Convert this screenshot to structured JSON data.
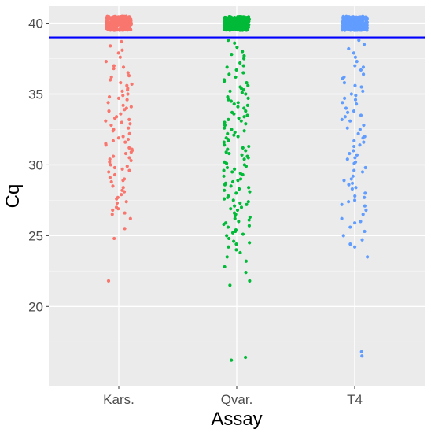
{
  "chart_data": {
    "type": "scatter",
    "style": "jitter strip plot",
    "xlabel": "Assay",
    "ylabel": "Cq",
    "ylim": [
      14.4,
      41.2
    ],
    "yticks": [
      20,
      25,
      30,
      35,
      40
    ],
    "grid": true,
    "legend": "none",
    "categories": [
      "Kars.",
      "Qvar.",
      "T4"
    ],
    "reference_line": {
      "y": 39,
      "color": "#0000FF"
    },
    "series": [
      {
        "category": "Kars.",
        "color": "#F8766D",
        "clustered_at_40_count": 260,
        "values": [
          38.7,
          38.4,
          38.1,
          37.9,
          37.6,
          37.3,
          37.0,
          36.8,
          36.5,
          36.2,
          36.0,
          35.8,
          35.6,
          35.4,
          35.2,
          35.0,
          34.8,
          34.6,
          34.4,
          34.2,
          34.0,
          33.8,
          33.6,
          33.4,
          33.2,
          33.0,
          32.8,
          32.6,
          32.4,
          32.2,
          32.0,
          31.8,
          31.6,
          31.4,
          31.2,
          31.0,
          30.8,
          30.6,
          30.4,
          30.2,
          30.0,
          29.8,
          29.6,
          29.3,
          29.0,
          28.8,
          28.5,
          28.2,
          27.9,
          27.6,
          27.3,
          27.0,
          26.8,
          26.5,
          26.2,
          25.5,
          24.8,
          21.8,
          36.9,
          35.3,
          34.7,
          33.9,
          33.1,
          32.5,
          31.9,
          31.1,
          30.5,
          29.9,
          29.1,
          28.4,
          27.7,
          26.9,
          35.7,
          34.1,
          32.9,
          31.5,
          30.3,
          29.5,
          28.9,
          27.4,
          36.3,
          34.9,
          33.3,
          31.7,
          30.9,
          29.7,
          28.1,
          26.6
        ]
      },
      {
        "category": "Qvar.",
        "color": "#00BA38",
        "clustered_at_40_count": 300,
        "values": [
          38.8,
          38.6,
          38.3,
          38.0,
          37.8,
          37.5,
          37.2,
          37.0,
          36.7,
          36.4,
          36.2,
          36.0,
          35.8,
          35.6,
          35.4,
          35.2,
          35.0,
          34.8,
          34.6,
          34.4,
          34.2,
          34.0,
          33.8,
          33.6,
          33.4,
          33.2,
          33.0,
          32.8,
          32.6,
          32.4,
          32.2,
          32.0,
          31.8,
          31.6,
          31.4,
          31.2,
          31.0,
          30.8,
          30.6,
          30.4,
          30.2,
          30.0,
          29.8,
          29.6,
          29.4,
          29.2,
          29.0,
          28.8,
          28.6,
          28.4,
          28.2,
          28.0,
          27.8,
          27.6,
          27.4,
          27.2,
          27.0,
          26.8,
          26.6,
          26.4,
          26.2,
          26.0,
          25.8,
          25.6,
          25.4,
          25.2,
          25.0,
          24.8,
          24.6,
          24.4,
          24.2,
          24.0,
          23.8,
          23.5,
          23.2,
          22.8,
          22.4,
          21.8,
          21.5,
          16.4,
          16.2,
          37.7,
          36.9,
          35.9,
          35.3,
          34.7,
          34.1,
          33.5,
          32.9,
          32.3,
          31.7,
          31.1,
          30.5,
          29.9,
          29.3,
          28.7,
          28.1,
          27.5,
          26.9,
          26.3,
          25.7,
          25.1,
          24.5,
          36.5,
          35.1,
          33.7,
          32.5,
          31.3,
          30.1,
          28.9,
          27.7,
          26.5,
          25.3,
          34.5,
          33.1,
          31.9,
          30.7,
          29.5,
          28.3,
          27.1,
          25.9,
          35.5,
          34.3,
          33.3,
          32.1,
          30.9,
          29.7,
          28.5,
          27.3,
          26.1
        ]
      },
      {
        "category": "T4",
        "color": "#619CFF",
        "clustered_at_40_count": 240,
        "values": [
          38.8,
          38.5,
          38.2,
          37.9,
          37.6,
          37.3,
          37.0,
          36.7,
          36.4,
          36.1,
          35.8,
          35.5,
          35.2,
          34.9,
          34.6,
          34.3,
          34.0,
          33.7,
          33.4,
          33.1,
          32.8,
          32.5,
          32.2,
          31.9,
          31.6,
          31.3,
          31.0,
          30.7,
          30.4,
          30.1,
          29.8,
          29.5,
          29.2,
          28.9,
          28.6,
          28.3,
          28.0,
          27.7,
          27.4,
          27.1,
          26.8,
          26.5,
          26.2,
          25.9,
          25.6,
          25.3,
          25.0,
          24.7,
          24.4,
          24.2,
          23.5,
          16.8,
          16.5,
          36.9,
          35.6,
          34.4,
          33.2,
          32.0,
          30.8,
          29.6,
          28.4,
          27.2,
          26.0,
          35.0,
          33.8,
          32.6,
          31.4,
          30.2,
          29.0,
          27.8,
          36.2,
          34.7,
          33.5,
          31.7,
          30.5,
          28.7,
          27.5
        ]
      }
    ]
  }
}
